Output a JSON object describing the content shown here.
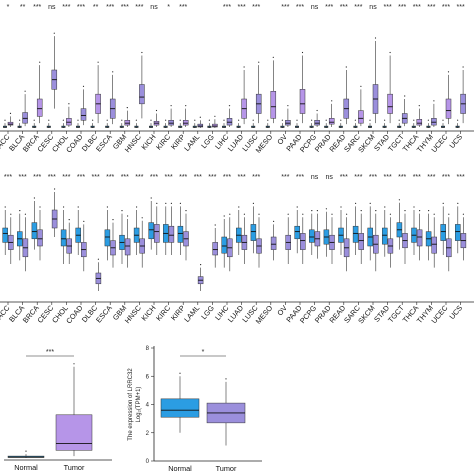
{
  "chart_data": [
    {
      "type": "box",
      "panel": "pan-cancer-unpaired",
      "categories": [
        "ACC",
        "BLCA",
        "BRCA",
        "CESC",
        "CHOL",
        "COAD",
        "DLBC",
        "ESCA",
        "GBM",
        "HNSC",
        "KICH",
        "KIRC",
        "KIRP",
        "LAML",
        "LGG",
        "LIHC",
        "LUAD",
        "LUSC",
        "MESO",
        "OV",
        "PAAD",
        "PCPG",
        "PRAD",
        "READ",
        "SARC",
        "SKCM",
        "STAD",
        "TGCT",
        "THCA",
        "THYM",
        "UCEC",
        "UCS"
      ],
      "significance": [
        "*",
        "**",
        "***",
        "ns",
        "***",
        "***",
        "**",
        "***",
        "***",
        "***",
        "ns",
        "*",
        "***",
        "",
        "",
        "***",
        "***",
        "***",
        "",
        "***",
        "***",
        "ns",
        "***",
        "***",
        "***",
        "ns",
        "***",
        "***",
        "***",
        "***",
        "***",
        "***"
      ],
      "series": [
        {
          "values": [
            [
              0.1,
              0.3,
              0.4,
              0.6,
              1.2
            ],
            [
              0.2,
              0.5,
              1.0,
              1.6,
              3.5
            ],
            [
              0.5,
              1.2,
              2.0,
              3.0,
              6.5
            ],
            [
              2.0,
              4.0,
              5.0,
              6.0,
              9.5
            ],
            [
              0.1,
              0.3,
              0.6,
              1.0,
              2.2
            ],
            [
              0.3,
              0.8,
              1.3,
              2.0,
              4.0
            ],
            [
              0.5,
              1.5,
              2.5,
              3.5,
              6.5
            ],
            [
              0.4,
              1.0,
              2.0,
              3.0,
              5.5
            ],
            [
              0.1,
              0.3,
              0.5,
              0.8,
              1.8
            ],
            [
              1.0,
              2.5,
              3.2,
              4.5,
              7.5
            ],
            [
              0.1,
              0.3,
              0.5,
              0.7,
              1.5
            ],
            [
              0.1,
              0.3,
              0.5,
              0.8,
              2.0
            ],
            [
              0.1,
              0.3,
              0.5,
              0.8,
              2.0
            ],
            [
              0.0,
              0.1,
              0.2,
              0.4,
              0.8
            ],
            [
              0.0,
              0.1,
              0.2,
              0.4,
              0.9
            ],
            [
              0.1,
              0.3,
              0.6,
              1.0,
              2.0
            ],
            [
              0.4,
              1.0,
              2.0,
              3.0,
              6.0
            ],
            [
              0.5,
              1.5,
              2.5,
              3.5,
              6.5
            ],
            [
              0.5,
              1.0,
              2.2,
              3.8,
              7.0
            ],
            [
              0.1,
              0.3,
              0.5,
              0.8,
              2.0
            ],
            [
              0.5,
              1.5,
              2.5,
              4.0,
              7.5
            ],
            [
              0.1,
              0.3,
              0.5,
              0.8,
              1.5
            ],
            [
              0.1,
              0.4,
              0.6,
              1.0,
              2.5
            ],
            [
              0.4,
              1.0,
              2.0,
              3.0,
              6.0
            ],
            [
              0.2,
              0.5,
              1.0,
              1.8,
              4.0
            ],
            [
              0.5,
              1.5,
              3.0,
              4.5,
              9.0
            ],
            [
              0.5,
              1.5,
              2.2,
              3.5,
              7.5
            ],
            [
              0.2,
              0.5,
              1.0,
              1.5,
              3.0
            ],
            [
              0.1,
              0.3,
              0.5,
              0.9,
              2.0
            ],
            [
              0.1,
              0.3,
              0.6,
              1.0,
              2.5
            ],
            [
              0.4,
              1.0,
              1.8,
              3.0,
              5.5
            ],
            [
              0.5,
              1.5,
              2.5,
              3.5,
              6.0
            ]
          ]
        }
      ],
      "ylim": [
        0,
        12
      ]
    },
    {
      "type": "box",
      "panel": "pan-cancer-paired",
      "categories": [
        "ACC",
        "BLCA",
        "BRCA",
        "CESC",
        "CHOL",
        "COAD",
        "DLBC",
        "ESCA",
        "GBM",
        "HNSC",
        "KICH",
        "KIRC",
        "KIRP",
        "LAML",
        "LGG",
        "LIHC",
        "LUAD",
        "LUSC",
        "MESO",
        "OV",
        "PAAD",
        "PCPG",
        "PRAD",
        "READ",
        "SARC",
        "SKCM",
        "STAD",
        "TGCT",
        "THCA",
        "THYM",
        "UCEC",
        "UCS"
      ],
      "significance": [
        "***",
        "***",
        "***",
        "***",
        "***",
        "***",
        "***",
        "***",
        "***",
        "***",
        "***",
        "***",
        "***",
        "***",
        "***",
        "***",
        "***",
        "***",
        "",
        "***",
        "***",
        "ns",
        "ns",
        "***",
        "***",
        "***",
        "***",
        "***",
        "***",
        "***",
        "***",
        "***"
      ],
      "series": [
        {
          "name": "Normal",
          "values": [
            [
              2.5,
              3.2,
              3.7,
              4.0,
              5.0
            ],
            [
              2.2,
              3.0,
              3.4,
              3.8,
              4.8
            ],
            [
              2.8,
              3.4,
              3.8,
              4.3,
              5.5
            ],
            [
              0,
              0,
              0,
              0,
              0
            ],
            [
              2.0,
              3.0,
              3.4,
              3.9,
              5.0
            ],
            [
              2.5,
              3.2,
              3.6,
              4.0,
              5.0
            ],
            [
              0,
              0,
              0,
              0,
              0
            ],
            [
              2.2,
              3.0,
              3.5,
              3.9,
              5.0
            ],
            [
              2.0,
              2.8,
              3.2,
              3.6,
              4.8
            ],
            [
              2.5,
              3.2,
              3.6,
              4.0,
              5.0
            ],
            [
              2.8,
              3.4,
              3.9,
              4.3,
              5.5
            ],
            [
              2.5,
              3.2,
              3.7,
              4.2,
              5.2
            ],
            [
              2.5,
              3.2,
              3.7,
              4.1,
              5.2
            ],
            [
              0,
              0,
              0,
              0,
              0
            ],
            [
              0,
              0,
              0,
              0,
              0
            ],
            [
              1.8,
              2.6,
              3.0,
              3.5,
              4.5
            ],
            [
              2.5,
              3.2,
              3.6,
              4.0,
              5.0
            ],
            [
              2.6,
              3.3,
              3.8,
              4.2,
              5.2
            ],
            [
              0,
              0,
              0,
              0,
              0
            ],
            [
              0,
              0,
              0,
              0,
              0
            ],
            [
              2.6,
              3.4,
              3.8,
              4.1,
              5.0
            ],
            [
              2.5,
              3.2,
              3.5,
              3.9,
              4.8
            ],
            [
              2.4,
              3.1,
              3.5,
              3.9,
              4.9
            ],
            [
              2.5,
              3.2,
              3.6,
              4.0,
              5.0
            ],
            [
              2.5,
              3.2,
              3.7,
              4.1,
              5.2
            ],
            [
              2.2,
              3.0,
              3.5,
              4.0,
              5.2
            ],
            [
              2.4,
              3.1,
              3.6,
              4.0,
              5.0
            ],
            [
              2.8,
              3.5,
              3.9,
              4.3,
              5.4
            ],
            [
              2.5,
              3.2,
              3.6,
              4.0,
              5.0
            ],
            [
              2.2,
              3.0,
              3.4,
              3.8,
              4.8
            ],
            [
              2.5,
              3.3,
              3.8,
              4.2,
              5.2
            ],
            [
              2.6,
              3.3,
              3.8,
              4.2,
              5.2
            ]
          ]
        },
        {
          "name": "Tumor",
          "values": [
            [
              2.0,
              2.8,
              3.2,
              3.6,
              4.6
            ],
            [
              1.6,
              2.4,
              2.9,
              3.4,
              4.6
            ],
            [
              2.2,
              3.0,
              3.4,
              3.9,
              5.0
            ],
            [
              3.5,
              4.0,
              4.5,
              5.0,
              6.0
            ],
            [
              2.0,
              2.6,
              3.0,
              3.4,
              4.3
            ],
            [
              1.6,
              2.4,
              2.8,
              3.2,
              4.2
            ],
            [
              0.5,
              0.9,
              1.2,
              1.5,
              2.1
            ],
            [
              1.8,
              2.5,
              2.9,
              3.3,
              4.3
            ],
            [
              1.8,
              2.5,
              3.0,
              3.4,
              4.5
            ],
            [
              1.8,
              2.6,
              3.0,
              3.4,
              4.4
            ],
            [
              2.5,
              3.2,
              3.8,
              4.2,
              5.2
            ],
            [
              2.5,
              3.2,
              3.6,
              4.1,
              5.2
            ],
            [
              2.2,
              3.0,
              3.4,
              3.8,
              4.8
            ],
            [
              0.5,
              0.9,
              1.1,
              1.3,
              1.8
            ],
            [
              1.8,
              2.5,
              2.8,
              3.2,
              4.0
            ],
            [
              1.6,
              2.4,
              2.9,
              3.4,
              4.6
            ],
            [
              2.0,
              2.8,
              3.2,
              3.6,
              4.6
            ],
            [
              1.8,
              2.6,
              3.0,
              3.4,
              4.6
            ],
            [
              2.2,
              2.8,
              3.1,
              3.5,
              4.2
            ],
            [
              2.0,
              2.8,
              3.2,
              3.6,
              4.6
            ],
            [
              2.0,
              2.8,
              3.3,
              3.7,
              4.6
            ],
            [
              2.3,
              3.0,
              3.4,
              3.8,
              4.8
            ],
            [
              2.0,
              2.8,
              3.2,
              3.6,
              4.6
            ],
            [
              1.6,
              2.4,
              2.9,
              3.4,
              4.6
            ],
            [
              2.0,
              2.8,
              3.3,
              3.7,
              4.8
            ],
            [
              1.6,
              2.6,
              3.1,
              3.6,
              4.8
            ],
            [
              1.8,
              2.6,
              3.0,
              3.4,
              4.6
            ],
            [
              2.0,
              2.9,
              3.3,
              3.7,
              4.8
            ],
            [
              2.2,
              3.0,
              3.5,
              3.9,
              4.8
            ],
            [
              1.8,
              2.6,
              3.1,
              3.5,
              4.6
            ],
            [
              1.6,
              2.4,
              2.9,
              3.4,
              4.6
            ],
            [
              2.2,
              2.9,
              3.3,
              3.7,
              4.6
            ]
          ]
        }
      ],
      "ylim": [
        0,
        6.5
      ]
    },
    {
      "type": "box",
      "panel": "normal-vs-tumor-left",
      "categories": [
        "Normal",
        "Tumor"
      ],
      "significance": "***",
      "series": [
        {
          "values": [
            [
              0.0,
              0.05,
              0.1,
              0.2,
              0.4
            ],
            [
              0.2,
              0.8,
              1.5,
              4.5,
              9.5
            ]
          ]
        }
      ],
      "ylim": [
        0,
        10
      ]
    },
    {
      "type": "box",
      "panel": "normal-vs-tumor-right",
      "categories": [
        "Normal",
        "Tumor"
      ],
      "significance": "*",
      "series": [
        {
          "values": [
            [
              2.0,
              3.1,
              3.6,
              4.4,
              6.0
            ],
            [
              1.1,
              2.7,
              3.4,
              4.1,
              5.6
            ]
          ]
        }
      ],
      "ylabel": "The expression of LRRC32\nLog₂(TPM+1)",
      "yticks": [
        0,
        2,
        4,
        6,
        8
      ],
      "ylim": [
        0,
        8
      ]
    }
  ],
  "colors": {
    "normal": "#2b9de3",
    "tumor": "#9b8fdc",
    "tumor_alt": "#b695e8",
    "whisker": "#333333"
  }
}
